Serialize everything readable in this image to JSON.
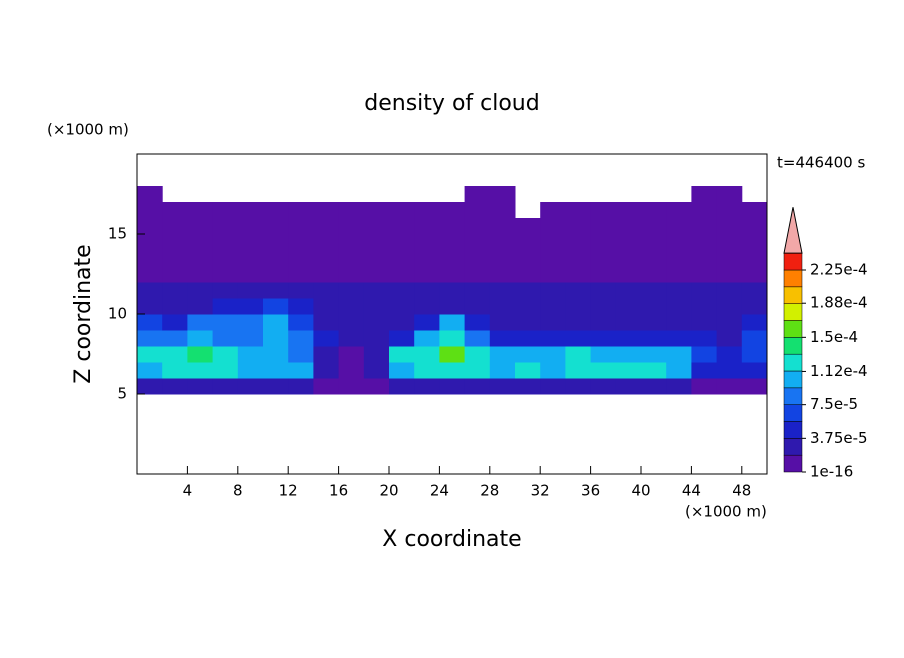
{
  "chart_data": {
    "type": "contour",
    "title": "density of cloud",
    "x_label": "X coordinate",
    "y_label": "Z coordinate",
    "x_unit": "(×1000 m)",
    "y_unit": "(×1000 m)",
    "time_label": "t=446400 s",
    "xlim": [
      0,
      50
    ],
    "ylim": [
      0,
      20
    ],
    "xticks": [
      4,
      8,
      12,
      16,
      20,
      24,
      28,
      32,
      36,
      40,
      44,
      48
    ],
    "yticks": [
      5,
      10,
      15
    ],
    "x": [
      1,
      3,
      5,
      7,
      9,
      11,
      13,
      15,
      17,
      19,
      21,
      23,
      25,
      27,
      29,
      31,
      33,
      35,
      37,
      39,
      41,
      43,
      45,
      47,
      49
    ],
    "y": [
      0.5,
      1.5,
      2.5,
      3.5,
      4.5,
      5.5,
      6.5,
      7.5,
      8.5,
      9.5,
      10.5,
      11.5,
      12.5,
      13.5,
      14.5,
      15.5,
      16.5,
      17.5,
      18.5,
      19.5
    ],
    "z": [
      [
        null,
        null,
        null,
        null,
        null,
        null,
        null,
        null,
        null,
        null,
        null,
        null,
        null,
        null,
        null,
        null,
        null,
        null,
        null,
        null,
        null,
        null,
        null,
        null,
        null
      ],
      [
        null,
        null,
        null,
        null,
        null,
        null,
        null,
        null,
        null,
        null,
        null,
        null,
        null,
        null,
        null,
        null,
        null,
        null,
        null,
        null,
        null,
        null,
        null,
        null,
        null
      ],
      [
        null,
        null,
        null,
        null,
        null,
        null,
        null,
        null,
        null,
        null,
        null,
        null,
        null,
        null,
        null,
        null,
        null,
        null,
        null,
        null,
        null,
        null,
        null,
        null,
        null
      ],
      [
        null,
        null,
        null,
        null,
        null,
        null,
        null,
        null,
        null,
        null,
        null,
        null,
        null,
        null,
        null,
        null,
        null,
        null,
        null,
        null,
        null,
        null,
        null,
        null,
        null
      ],
      [
        null,
        null,
        null,
        null,
        null,
        null,
        null,
        null,
        null,
        null,
        null,
        null,
        null,
        null,
        null,
        null,
        null,
        null,
        null,
        null,
        null,
        null,
        null,
        null,
        null
      ],
      [
        3e-05,
        3e-05,
        3e-05,
        3e-05,
        3e-05,
        3e-05,
        3e-05,
        1e-05,
        1e-05,
        1e-05,
        3e-05,
        3e-05,
        3e-05,
        3e-05,
        3e-05,
        3e-05,
        3e-05,
        3e-05,
        3e-05,
        3e-05,
        3e-05,
        3e-05,
        1e-05,
        1e-05,
        1e-05
      ],
      [
        0.0001,
        0.00012,
        0.00012,
        0.00012,
        0.0001,
        0.0001,
        0.0001,
        3e-05,
        1e-05,
        3e-05,
        0.0001,
        0.00012,
        0.00012,
        0.00012,
        0.0001,
        0.00012,
        0.0001,
        0.00012,
        0.00012,
        0.00012,
        0.00012,
        0.0001,
        5e-05,
        5e-05,
        5e-05
      ],
      [
        0.00012,
        0.00012,
        0.00014,
        0.00012,
        0.0001,
        0.0001,
        9e-05,
        3e-05,
        1e-05,
        3e-05,
        0.00012,
        0.00012,
        0.00016,
        0.00012,
        0.0001,
        0.0001,
        0.0001,
        0.00012,
        0.0001,
        0.0001,
        0.0001,
        0.0001,
        7e-05,
        5e-05,
        7e-05
      ],
      [
        9e-05,
        9e-05,
        0.0001,
        9e-05,
        9e-05,
        0.0001,
        9e-05,
        5e-05,
        3e-05,
        3e-05,
        5e-05,
        0.0001,
        0.00012,
        9e-05,
        5e-05,
        5e-05,
        5e-05,
        5e-05,
        5e-05,
        5e-05,
        5e-05,
        5e-05,
        5e-05,
        3e-05,
        7e-05
      ],
      [
        7e-05,
        5e-05,
        9e-05,
        9e-05,
        9e-05,
        0.0001,
        7e-05,
        3e-05,
        3e-05,
        3e-05,
        3e-05,
        5e-05,
        0.0001,
        5e-05,
        3e-05,
        3e-05,
        3e-05,
        3e-05,
        3e-05,
        3e-05,
        3e-05,
        3e-05,
        3e-05,
        3e-05,
        5e-05
      ],
      [
        3e-05,
        3e-05,
        3e-05,
        5e-05,
        5e-05,
        7e-05,
        5e-05,
        3e-05,
        3e-05,
        3e-05,
        3e-05,
        3e-05,
        3e-05,
        3e-05,
        3e-05,
        3e-05,
        3e-05,
        3e-05,
        3e-05,
        3e-05,
        3e-05,
        3e-05,
        3e-05,
        3e-05,
        3e-05
      ],
      [
        3e-05,
        3e-05,
        3e-05,
        3e-05,
        3e-05,
        3e-05,
        3e-05,
        3e-05,
        3e-05,
        3e-05,
        3e-05,
        3e-05,
        3e-05,
        3e-05,
        3e-05,
        3e-05,
        3e-05,
        3e-05,
        3e-05,
        3e-05,
        3e-05,
        3e-05,
        3e-05,
        3e-05,
        3e-05
      ],
      [
        1e-05,
        1e-05,
        1e-05,
        1e-05,
        1e-05,
        1e-05,
        1e-05,
        1e-05,
        1e-05,
        1e-05,
        1e-05,
        1e-05,
        1e-05,
        1e-05,
        1e-05,
        1e-05,
        1e-05,
        1e-05,
        1e-05,
        1e-05,
        1e-05,
        1e-05,
        1e-05,
        1e-05,
        1e-05
      ],
      [
        1e-05,
        1e-05,
        1e-05,
        1e-05,
        1e-05,
        1e-05,
        1e-05,
        1e-05,
        1e-05,
        1e-05,
        1e-05,
        1e-05,
        1e-05,
        1e-05,
        1e-05,
        1e-05,
        1e-05,
        1e-05,
        1e-05,
        1e-05,
        1e-05,
        1e-05,
        1e-05,
        1e-05,
        1e-05
      ],
      [
        1e-05,
        1e-05,
        1e-05,
        1e-05,
        1e-05,
        1e-05,
        1e-05,
        1e-05,
        1e-05,
        1e-05,
        1e-05,
        1e-05,
        1e-05,
        1e-05,
        1e-05,
        1e-05,
        1e-05,
        1e-05,
        1e-05,
        1e-05,
        1e-05,
        1e-05,
        1e-05,
        1e-05,
        1e-05
      ],
      [
        1e-05,
        1e-05,
        1e-05,
        1e-05,
        1e-05,
        1e-05,
        1e-05,
        1e-05,
        1e-05,
        1e-05,
        1e-05,
        1e-05,
        1e-05,
        1e-05,
        1e-05,
        1e-05,
        1e-05,
        1e-05,
        1e-05,
        1e-05,
        1e-05,
        1e-05,
        1e-05,
        1e-05,
        1e-05
      ],
      [
        1e-05,
        1e-05,
        1e-05,
        1e-05,
        1e-05,
        1e-05,
        1e-05,
        1e-05,
        1e-05,
        1e-05,
        1e-05,
        1e-05,
        1e-05,
        1e-05,
        1e-05,
        null,
        1e-05,
        1e-05,
        1e-05,
        1e-05,
        1e-05,
        1e-05,
        1e-05,
        1e-05,
        1e-05
      ],
      [
        1e-05,
        null,
        null,
        null,
        null,
        null,
        null,
        null,
        null,
        null,
        null,
        null,
        null,
        1e-05,
        1e-05,
        null,
        null,
        null,
        null,
        null,
        null,
        null,
        1e-05,
        1e-05,
        null
      ],
      [
        null,
        null,
        null,
        null,
        null,
        null,
        null,
        null,
        null,
        null,
        null,
        null,
        null,
        null,
        null,
        null,
        null,
        null,
        null,
        null,
        null,
        null,
        null,
        null,
        null
      ],
      [
        null,
        null,
        null,
        null,
        null,
        null,
        null,
        null,
        null,
        null,
        null,
        null,
        null,
        null,
        null,
        null,
        null,
        null,
        null,
        null,
        null,
        null,
        null,
        null,
        null
      ]
    ],
    "levels": [
      1e-16,
      1.875e-05,
      3.75e-05,
      5.625e-05,
      7.5e-05,
      9.375e-05,
      0.0001125,
      0.00013125,
      0.00015,
      0.00016875,
      0.0001875,
      0.00020625,
      0.000225,
      0.00024375
    ],
    "colors": [
      "#560fa6",
      "#2f19ae",
      "#1a22c8",
      "#1244e2",
      "#1874f2",
      "#12aef2",
      "#14e0d0",
      "#14e070",
      "#5ee014",
      "#d2f000",
      "#f8c000",
      "#ff8000",
      "#f02010"
    ],
    "extend_color": "#f2a8a8",
    "colorbar_ticks": [
      {
        "value": 1e-16,
        "label": "1e-16"
      },
      {
        "value": 3.75e-05,
        "label": "3.75e-5"
      },
      {
        "value": 7.5e-05,
        "label": "7.5e-5"
      },
      {
        "value": 0.000112,
        "label": "1.12e-4"
      },
      {
        "value": 0.00015,
        "label": "1.5e-4"
      },
      {
        "value": 0.000188,
        "label": "1.88e-4"
      },
      {
        "value": 0.000225,
        "label": "2.25e-4"
      }
    ]
  }
}
